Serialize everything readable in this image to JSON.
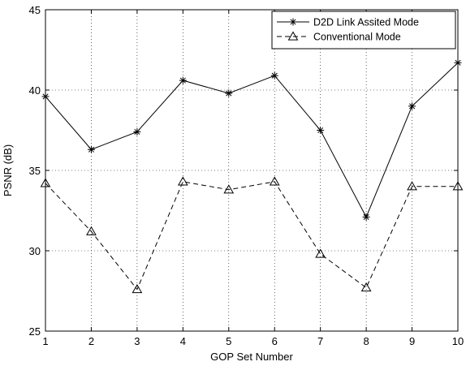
{
  "chart_data": {
    "type": "line",
    "title": "",
    "xlabel": "GOP Set Number",
    "ylabel": "PSNR (dB)",
    "x": [
      1,
      2,
      3,
      4,
      5,
      6,
      7,
      8,
      9,
      10
    ],
    "xlim": [
      1,
      10
    ],
    "ylim": [
      25,
      45
    ],
    "xticks": [
      "1",
      "2",
      "3",
      "4",
      "5",
      "6",
      "7",
      "8",
      "9",
      "10"
    ],
    "yticks": [
      "25",
      "30",
      "35",
      "40",
      "45"
    ],
    "grid": true,
    "legend_position": "top-right",
    "series": [
      {
        "name": "D2D Link Assited Mode",
        "line_style": "solid",
        "marker": "asterisk",
        "color": "#000000",
        "values": [
          39.6,
          36.3,
          37.4,
          40.6,
          39.8,
          40.9,
          37.5,
          32.1,
          39.0,
          41.7
        ]
      },
      {
        "name": "Conventional Mode",
        "line_style": "dashed",
        "marker": "triangle",
        "color": "#000000",
        "values": [
          34.2,
          31.2,
          27.6,
          34.3,
          33.8,
          34.3,
          29.8,
          27.7,
          34.0,
          34.0
        ]
      }
    ]
  }
}
